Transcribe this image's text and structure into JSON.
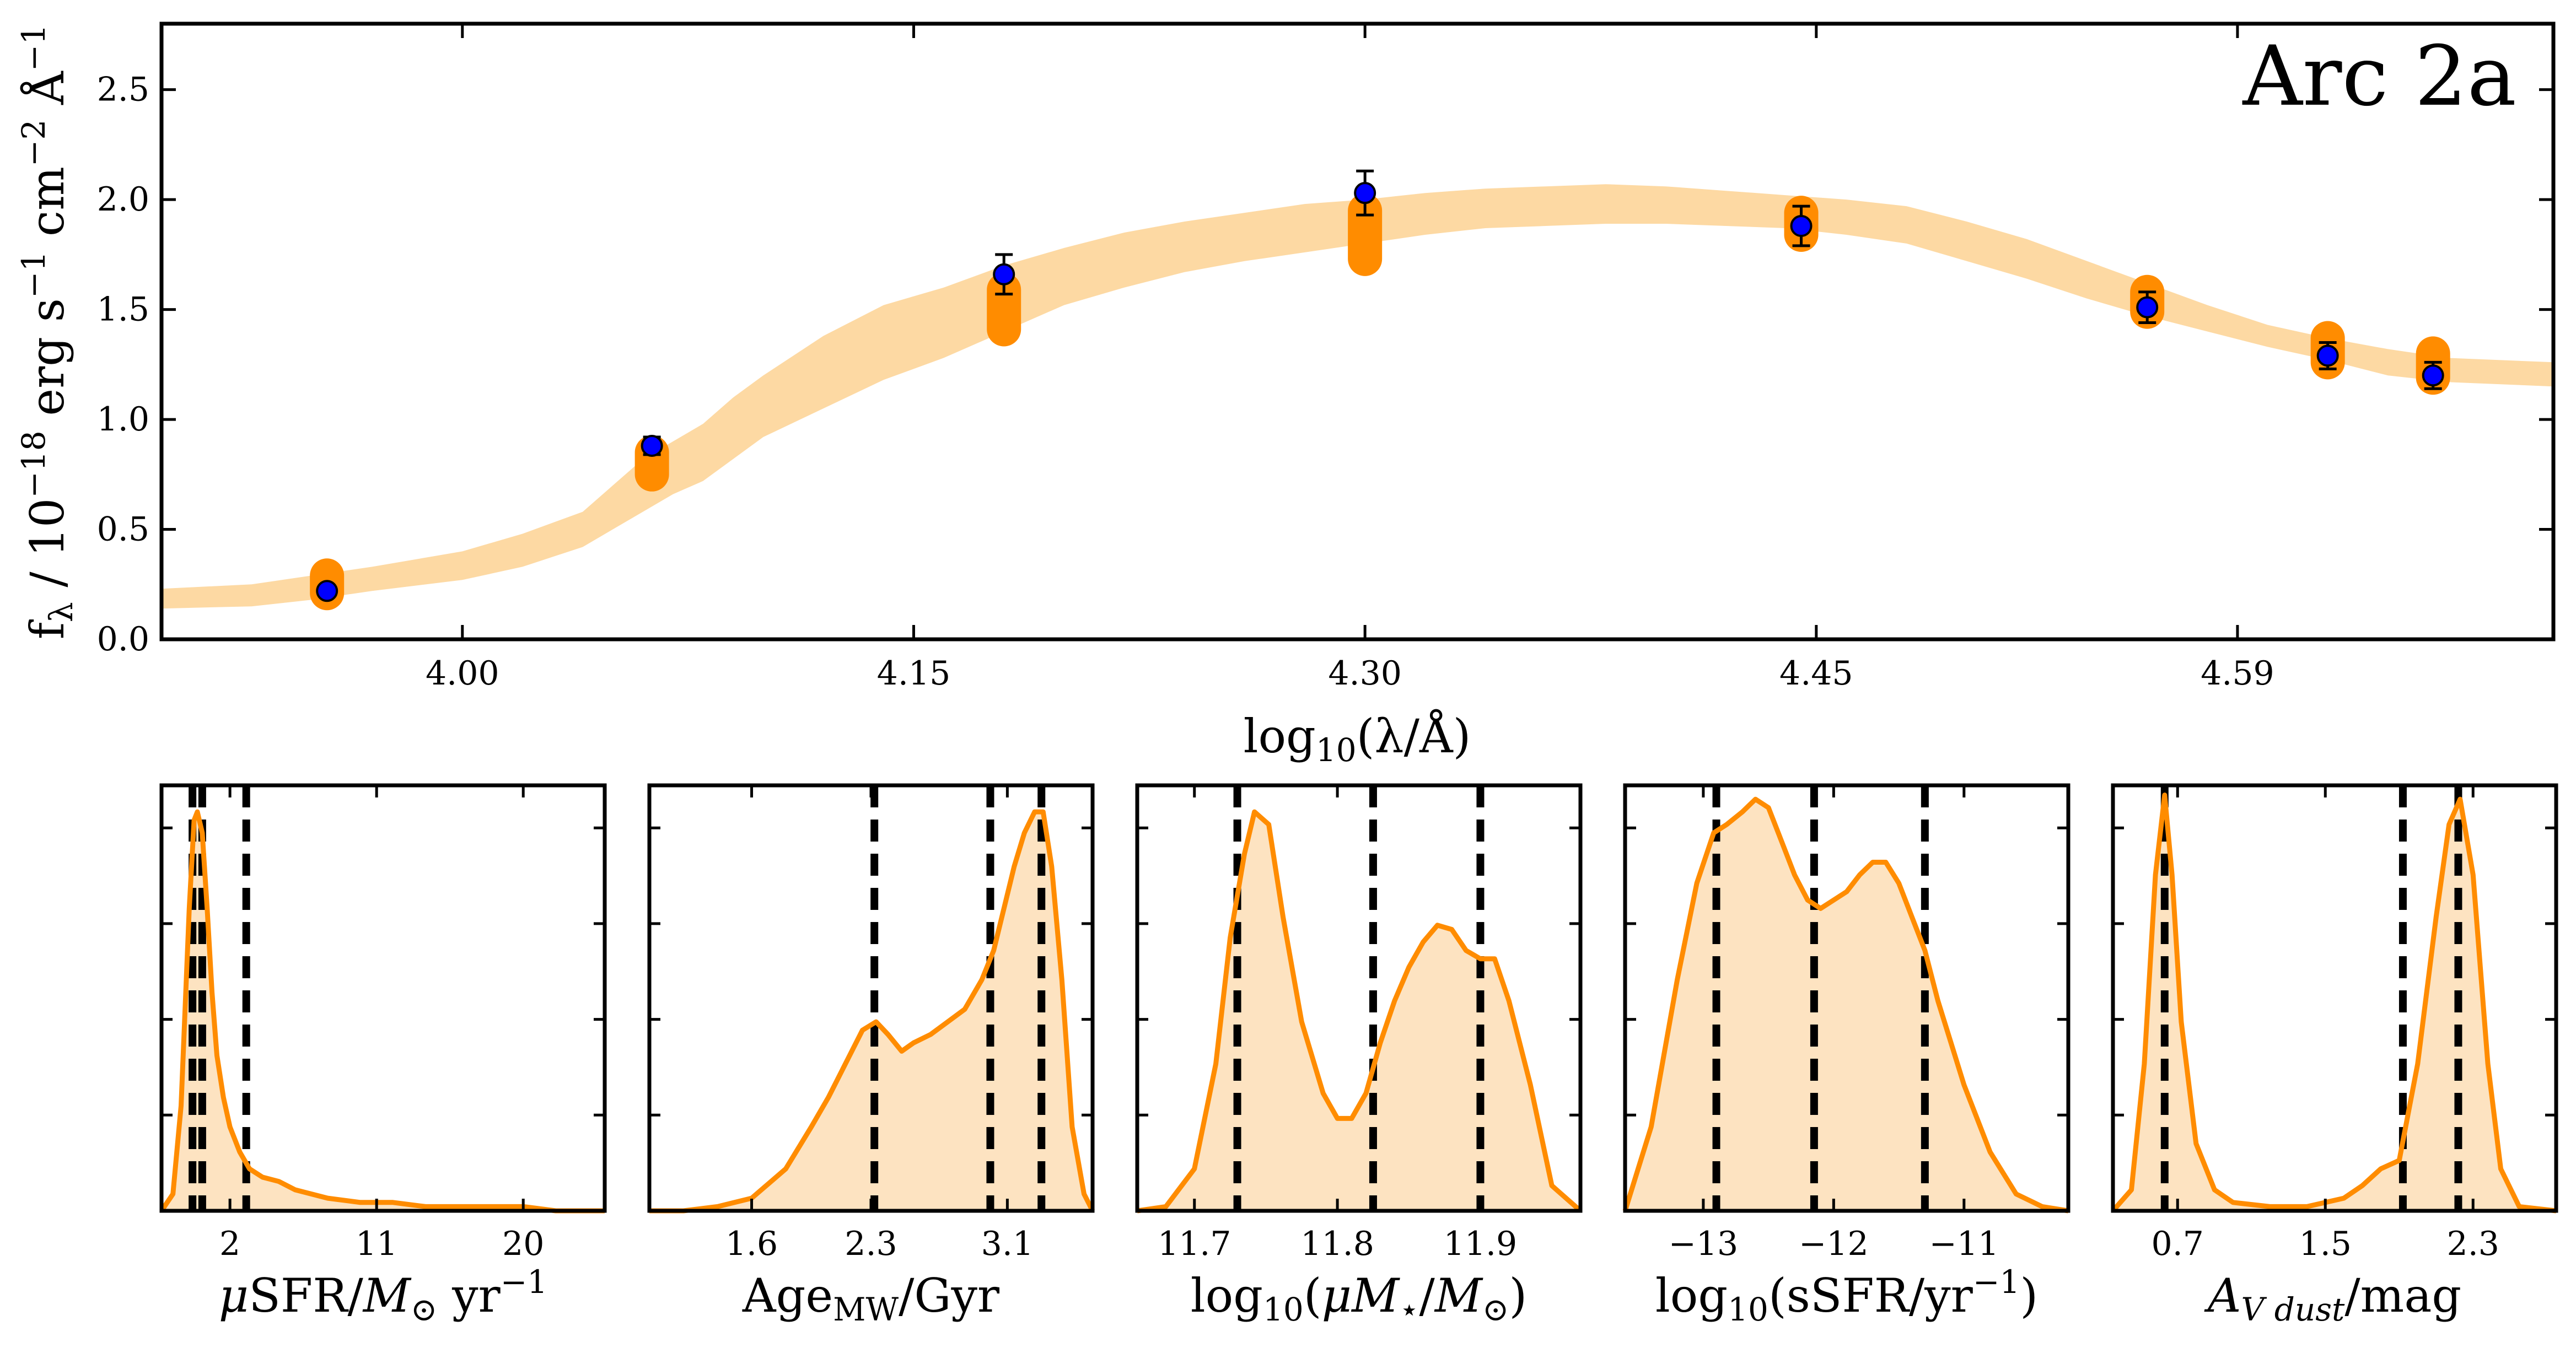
{
  "colors": {
    "band": "#fdd9a3",
    "model_points": "#ff8c00",
    "observed_points": "#0000ff",
    "posterior_line": "#ff8c00",
    "posterior_fill": "#fde3c1",
    "percentile_lines": "#000000"
  },
  "chart_data": [
    {
      "type": "scatter",
      "title": "Arc 2a",
      "xlabel": "log10(λ/Å)",
      "xlabel_parts": {
        "base": "log",
        "sub": "10",
        "rest": "(λ/Å)"
      },
      "ylabel": "fλ / 10−18 erg s−1 cm−2 Å−1",
      "ylabel_parts": {
        "a": "f",
        "a_sub": "λ",
        "b": " / 10",
        "b_sup": "−18",
        "c": " erg s",
        "c_sup": "−1",
        "d": " cm",
        "d_sup": "−2",
        "e": " Å",
        "e_sup": "−1"
      },
      "xlim": [
        3.9,
        4.695
      ],
      "ylim": [
        0,
        2.8
      ],
      "xticks": [
        4.0,
        4.15,
        4.3,
        4.45,
        4.59
      ],
      "xtick_labels": [
        "4.00",
        "4.15",
        "4.30",
        "4.45",
        "4.59"
      ],
      "yticks": [
        0.0,
        0.5,
        1.0,
        1.5,
        2.0,
        2.5
      ],
      "ytick_labels": [
        "0.0",
        "0.5",
        "1.0",
        "1.5",
        "2.0",
        "2.5"
      ],
      "model_band": {
        "x": [
          3.9,
          3.93,
          3.95,
          3.97,
          4.0,
          4.02,
          4.04,
          4.05,
          4.06,
          4.07,
          4.08,
          4.09,
          4.1,
          4.12,
          4.14,
          4.16,
          4.18,
          4.2,
          4.22,
          4.24,
          4.26,
          4.28,
          4.3,
          4.32,
          4.34,
          4.36,
          4.38,
          4.4,
          4.42,
          4.44,
          4.46,
          4.48,
          4.5,
          4.52,
          4.54,
          4.56,
          4.58,
          4.6,
          4.62,
          4.64,
          4.66,
          4.695
        ],
        "lower": [
          0.14,
          0.15,
          0.18,
          0.22,
          0.27,
          0.33,
          0.42,
          0.5,
          0.58,
          0.66,
          0.72,
          0.82,
          0.92,
          1.05,
          1.18,
          1.28,
          1.4,
          1.52,
          1.6,
          1.67,
          1.72,
          1.76,
          1.8,
          1.84,
          1.87,
          1.88,
          1.89,
          1.89,
          1.88,
          1.87,
          1.84,
          1.8,
          1.72,
          1.64,
          1.55,
          1.47,
          1.4,
          1.33,
          1.27,
          1.2,
          1.17,
          1.15
        ],
        "upper": [
          0.23,
          0.25,
          0.29,
          0.33,
          0.4,
          0.48,
          0.58,
          0.7,
          0.82,
          0.9,
          0.98,
          1.1,
          1.2,
          1.38,
          1.52,
          1.6,
          1.7,
          1.78,
          1.85,
          1.9,
          1.94,
          1.98,
          2.0,
          2.03,
          2.05,
          2.06,
          2.07,
          2.06,
          2.04,
          2.02,
          2.0,
          1.97,
          1.9,
          1.82,
          1.72,
          1.62,
          1.52,
          1.43,
          1.37,
          1.32,
          1.28,
          1.26
        ]
      },
      "model_points": {
        "x": [
          3.955,
          4.063,
          4.18,
          4.3,
          4.445,
          4.56,
          4.62,
          4.655
        ],
        "low": [
          0.21,
          0.75,
          1.41,
          1.73,
          1.84,
          1.49,
          1.26,
          1.19
        ],
        "high": [
          0.29,
          0.85,
          1.59,
          1.95,
          1.94,
          1.58,
          1.37,
          1.3
        ]
      },
      "observed": {
        "x": [
          3.955,
          4.063,
          4.18,
          4.3,
          4.445,
          4.56,
          4.62,
          4.655
        ],
        "y": [
          0.22,
          0.88,
          1.66,
          2.03,
          1.88,
          1.51,
          1.29,
          1.2
        ],
        "err": [
          0.02,
          0.04,
          0.09,
          0.1,
          0.09,
          0.07,
          0.06,
          0.06
        ]
      }
    },
    {
      "type": "area",
      "xlabel": "μSFR/M⊙ yr−1",
      "xlabel_parts": {
        "a": "μ",
        "b": "SFR/",
        "c": "M",
        "c_sub": "⊙",
        "d": " yr",
        "d_sup": "−1"
      },
      "xlim": [
        -2.2,
        25
      ],
      "xticks": [
        2,
        11,
        20
      ],
      "xtick_labels": [
        "2",
        "11",
        "20"
      ],
      "percentiles": [
        -0.3,
        0.3,
        3.0
      ],
      "x": [
        -2.2,
        -1.5,
        -1.0,
        -0.5,
        -0.2,
        0.0,
        0.3,
        0.6,
        0.9,
        1.2,
        1.6,
        2.0,
        2.6,
        3.2,
        4.0,
        5.0,
        6.0,
        7.0,
        8.0,
        10.0,
        12.0,
        14.0,
        16.0,
        18.0,
        20.0,
        22.0,
        25.0
      ],
      "y": [
        0.0,
        0.04,
        0.25,
        0.72,
        0.93,
        0.95,
        0.9,
        0.72,
        0.52,
        0.37,
        0.27,
        0.2,
        0.14,
        0.1,
        0.08,
        0.07,
        0.05,
        0.04,
        0.03,
        0.02,
        0.02,
        0.01,
        0.01,
        0.01,
        0.01,
        0.0,
        0.0
      ]
    },
    {
      "type": "area",
      "xlabel": "AgeMW/Gyr",
      "xlabel_parts": {
        "a": "Age",
        "a_sub": "MW",
        "b": "/Gyr"
      },
      "xlim": [
        1.0,
        3.6
      ],
      "xticks": [
        1.6,
        2.3,
        3.1
      ],
      "xtick_labels": [
        "1.6",
        "2.3",
        "3.1"
      ],
      "percentiles": [
        2.32,
        3.0,
        3.3
      ],
      "x": [
        1.0,
        1.2,
        1.4,
        1.6,
        1.8,
        1.95,
        2.05,
        2.15,
        2.25,
        2.33,
        2.4,
        2.48,
        2.55,
        2.65,
        2.75,
        2.85,
        2.95,
        3.02,
        3.08,
        3.14,
        3.2,
        3.26,
        3.31,
        3.36,
        3.42,
        3.48,
        3.55,
        3.6
      ],
      "y": [
        0.0,
        0.0,
        0.01,
        0.03,
        0.1,
        0.2,
        0.27,
        0.35,
        0.43,
        0.45,
        0.42,
        0.38,
        0.4,
        0.42,
        0.45,
        0.48,
        0.55,
        0.62,
        0.72,
        0.82,
        0.9,
        0.95,
        0.95,
        0.82,
        0.55,
        0.2,
        0.04,
        0.0
      ]
    },
    {
      "type": "area",
      "xlabel": "log10(μM⋆/M⊙)",
      "xlabel_parts": {
        "a": "log",
        "a_sub": "10",
        "b": "(",
        "c": "μM",
        "c_sub": "⋆",
        "d": "/",
        "e": "M",
        "e_sub": "⊙",
        "f": ")"
      },
      "xlim": [
        11.66,
        11.97
      ],
      "xticks": [
        11.7,
        11.8,
        11.9
      ],
      "xtick_labels": [
        "11.7",
        "11.8",
        "11.9"
      ],
      "percentiles": [
        11.73,
        11.825,
        11.9
      ],
      "x": [
        11.66,
        11.68,
        11.7,
        11.715,
        11.725,
        11.735,
        11.742,
        11.752,
        11.762,
        11.775,
        11.79,
        11.8,
        11.81,
        11.82,
        11.83,
        11.84,
        11.85,
        11.86,
        11.87,
        11.88,
        11.89,
        11.9,
        11.91,
        11.92,
        11.935,
        11.95,
        11.97
      ],
      "y": [
        0.0,
        0.01,
        0.1,
        0.35,
        0.65,
        0.85,
        0.95,
        0.92,
        0.7,
        0.45,
        0.28,
        0.22,
        0.22,
        0.28,
        0.4,
        0.5,
        0.58,
        0.64,
        0.68,
        0.67,
        0.62,
        0.6,
        0.6,
        0.5,
        0.3,
        0.06,
        0.0
      ]
    },
    {
      "type": "area",
      "xlabel": "log10(sSFR/yr−1)",
      "xlabel_parts": {
        "a": "log",
        "a_sub": "10",
        "b": "(sSFR/yr",
        "b_sup": "−1",
        "c": ")"
      },
      "xlim": [
        -13.6,
        -10.2
      ],
      "xticks": [
        -13,
        -12,
        -11
      ],
      "xtick_labels": [
        "−13",
        "−12",
        "−11"
      ],
      "percentiles": [
        -12.9,
        -12.15,
        -11.3
      ],
      "x": [
        -13.6,
        -13.4,
        -13.2,
        -13.05,
        -12.92,
        -12.82,
        -12.7,
        -12.6,
        -12.5,
        -12.4,
        -12.3,
        -12.2,
        -12.1,
        -12.0,
        -11.9,
        -11.8,
        -11.7,
        -11.6,
        -11.5,
        -11.4,
        -11.3,
        -11.2,
        -11.1,
        -11.0,
        -10.9,
        -10.8,
        -10.6,
        -10.4,
        -10.2
      ],
      "y": [
        0.0,
        0.2,
        0.55,
        0.78,
        0.9,
        0.92,
        0.95,
        0.98,
        0.96,
        0.88,
        0.8,
        0.74,
        0.72,
        0.74,
        0.76,
        0.8,
        0.83,
        0.83,
        0.78,
        0.7,
        0.62,
        0.5,
        0.4,
        0.3,
        0.22,
        0.14,
        0.04,
        0.01,
        0.0
      ]
    },
    {
      "type": "area",
      "xlabel": "AV dust/mag",
      "xlabel_parts": {
        "a": "A",
        "a_sub": "V dust",
        "b": "/mag"
      },
      "xlim": [
        0.35,
        2.75
      ],
      "xticks": [
        0.7,
        1.5,
        2.3
      ],
      "xtick_labels": [
        "0.7",
        "1.5",
        "2.3"
      ],
      "percentiles": [
        0.63,
        1.92,
        2.22
      ],
      "x": [
        0.35,
        0.45,
        0.52,
        0.58,
        0.63,
        0.67,
        0.72,
        0.8,
        0.9,
        1.0,
        1.2,
        1.4,
        1.6,
        1.7,
        1.8,
        1.9,
        2.0,
        2.1,
        2.17,
        2.23,
        2.3,
        2.38,
        2.45,
        2.55,
        2.75
      ],
      "y": [
        0.0,
        0.05,
        0.35,
        0.8,
        0.99,
        0.8,
        0.45,
        0.16,
        0.05,
        0.02,
        0.01,
        0.01,
        0.03,
        0.06,
        0.1,
        0.12,
        0.35,
        0.7,
        0.92,
        0.98,
        0.8,
        0.35,
        0.1,
        0.01,
        0.0
      ]
    }
  ]
}
